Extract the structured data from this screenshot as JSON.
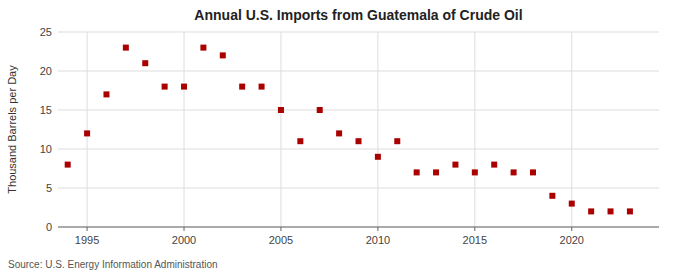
{
  "chart_data": {
    "type": "scatter",
    "title": "Annual U.S. Imports from Guatemala of Crude Oil",
    "ylabel": "Thousand Barrels per Day",
    "source": "Source: U.S. Energy Information Administration",
    "x": [
      1994,
      1995,
      1996,
      1997,
      1998,
      1999,
      2000,
      2001,
      2002,
      2003,
      2004,
      2005,
      2006,
      2007,
      2008,
      2009,
      2010,
      2011,
      2012,
      2013,
      2014,
      2015,
      2016,
      2017,
      2018,
      2019,
      2020,
      2021,
      2022,
      2023
    ],
    "values": [
      8,
      12,
      17,
      23,
      21,
      18,
      18,
      23,
      22,
      18,
      18,
      15,
      11,
      15,
      12,
      11,
      9,
      11,
      7,
      7,
      8,
      7,
      8,
      7,
      7,
      4,
      3,
      2,
      2,
      2
    ],
    "color": "#aa0000",
    "marker": "square",
    "xlim": [
      1993.5,
      2024.5
    ],
    "ylim": [
      0,
      25
    ],
    "xticks": [
      1995,
      2000,
      2005,
      2010,
      2015,
      2020
    ],
    "yticks": [
      0,
      5,
      10,
      15,
      20,
      25
    ],
    "grid": true
  }
}
